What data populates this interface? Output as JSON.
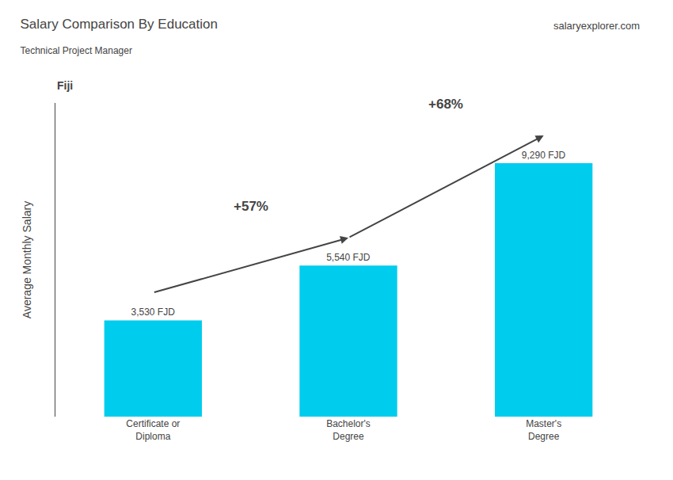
{
  "chart_data": {
    "type": "bar",
    "title": "Salary Comparison By Education",
    "subtitle": "Technical Project Manager",
    "categories": [
      "Certificate or\nDiploma",
      "Bachelor's\nDegree",
      "Master's\nDegree"
    ],
    "values": [
      3530,
      5540,
      9290
    ],
    "value_labels": [
      "3,530 FJD",
      "5,540 FJD",
      "9,290 FJD"
    ],
    "data_labels": true,
    "color": "#00ccee",
    "ylabel": "Average Monthly Salary",
    "ylim": [
      0,
      11500
    ],
    "tick_labels": "x",
    "grid": false,
    "annotations": [
      "+57%",
      "+68%",
      "Fiji",
      "salaryexplorer.com"
    ]
  }
}
